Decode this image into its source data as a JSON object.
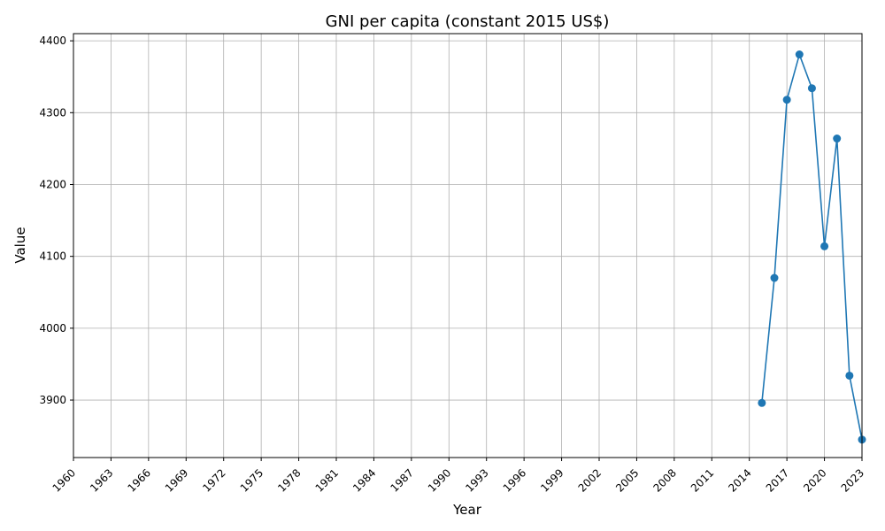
{
  "chart_data": {
    "type": "line",
    "title": "GNI per capita (constant 2015 US$)",
    "xlabel": "Year",
    "ylabel": "Value",
    "x_ticks": [
      "1960",
      "1963",
      "1966",
      "1969",
      "1972",
      "1975",
      "1978",
      "1981",
      "1984",
      "1987",
      "1990",
      "1993",
      "1996",
      "1999",
      "2002",
      "2005",
      "2008",
      "2011",
      "2014",
      "2017",
      "2020",
      "2023"
    ],
    "y_ticks": [
      "3900",
      "4000",
      "4100",
      "4200",
      "4300",
      "4400"
    ],
    "xlim": [
      1960,
      2023
    ],
    "ylim": [
      3820,
      4410
    ],
    "grid": true,
    "x_tick_rotation_deg": 45,
    "series": [
      {
        "color": "#1f77b4",
        "marker": "circle",
        "x": [
          2015,
          2016,
          2017,
          2018,
          2019,
          2020,
          2021,
          2022,
          2023
        ],
        "y": [
          3896,
          4070,
          4318,
          4381,
          4334,
          4114,
          4264,
          3934,
          3845
        ]
      }
    ]
  }
}
